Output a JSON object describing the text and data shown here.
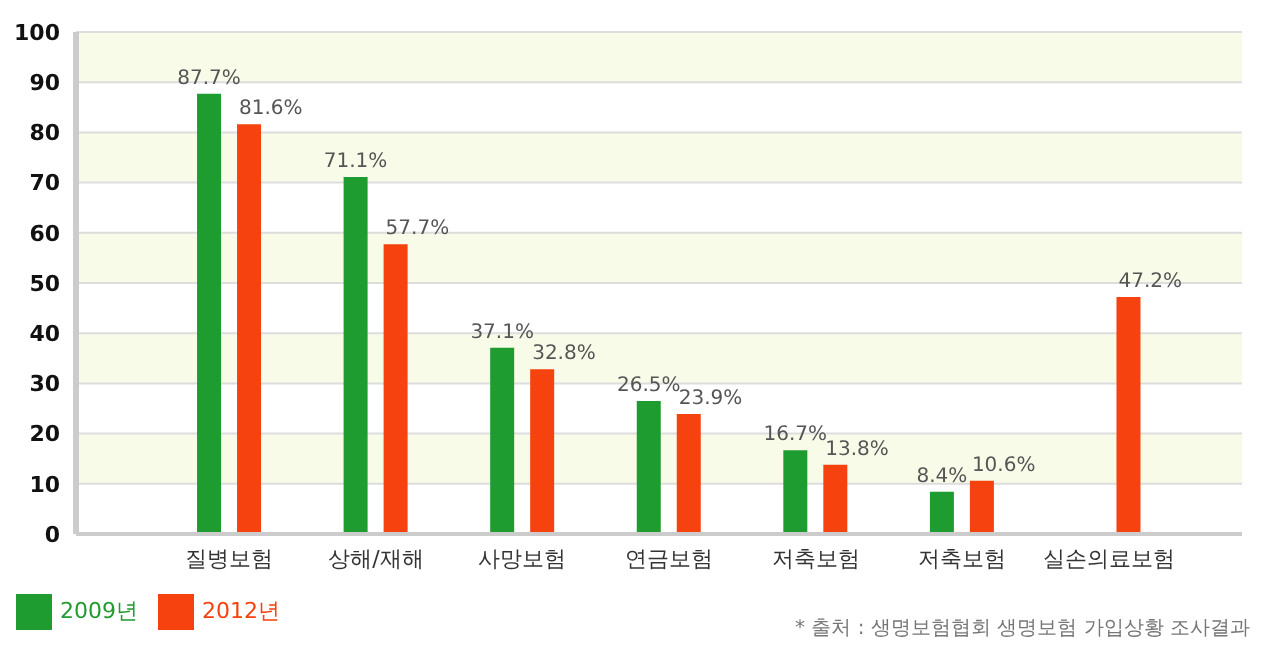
{
  "chart_data": {
    "type": "bar",
    "categories": [
      "질병보험",
      "상해/재해",
      "사망보험",
      "연금보험",
      "저축보험",
      "저축보험",
      "실손의료보험"
    ],
    "series": [
      {
        "name": "2009년",
        "color": "#1f9c30",
        "values": [
          87.7,
          71.1,
          37.1,
          26.5,
          16.7,
          8.4,
          null
        ],
        "value_labels": [
          "87.7%",
          "71.1%",
          "37.1%",
          "26.5%",
          "16.7%",
          "8.4%",
          null
        ]
      },
      {
        "name": "2012년",
        "color": "#f5420e",
        "values": [
          81.6,
          57.7,
          32.8,
          23.9,
          13.8,
          10.6,
          47.2
        ],
        "value_labels": [
          "81.6%",
          "57.7%",
          "32.8%",
          "23.9%",
          "13.8%",
          "10.6%",
          "47.2%"
        ]
      }
    ],
    "ylim": [
      0,
      100
    ],
    "yticks": [
      0,
      10,
      20,
      30,
      40,
      50,
      60,
      70,
      80,
      90,
      100
    ],
    "grid": "y",
    "legend": "bottom left",
    "annotations": [
      "* 출처 : 생명보험협회 생명보험 가입상황 조사결과"
    ]
  }
}
